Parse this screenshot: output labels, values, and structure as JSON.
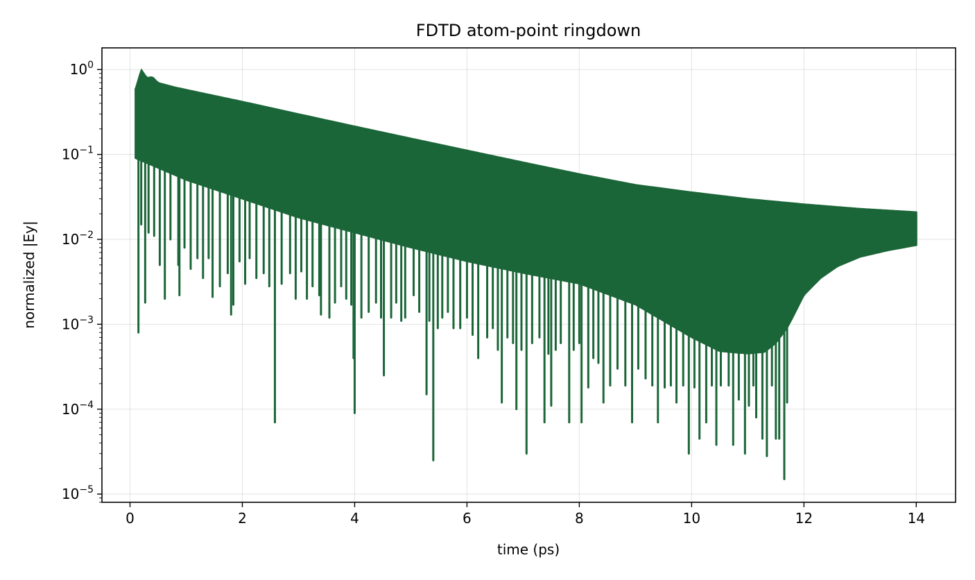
{
  "chart_data": {
    "type": "line",
    "title": "FDTD atom-point ringdown",
    "xlabel": "time (ps)",
    "ylabel": "normalized |Ey|",
    "xlim": [
      -0.5,
      14.7
    ],
    "ylim": [
      8e-06,
      1.8
    ],
    "yscale": "log",
    "grid": true,
    "x_ticks": [
      0,
      2,
      4,
      6,
      8,
      10,
      12,
      14
    ],
    "x_tick_labels": [
      "0",
      "2",
      "4",
      "6",
      "8",
      "10",
      "12",
      "14"
    ],
    "y_ticks": [
      1.0,
      0.1,
      0.01,
      0.001,
      0.0001,
      1e-05
    ],
    "y_tick_labels": [
      {
        "base": "10",
        "exp": "0"
      },
      {
        "base": "10",
        "exp": "−1"
      },
      {
        "base": "10",
        "exp": "−2"
      },
      {
        "base": "10",
        "exp": "−3"
      },
      {
        "base": "10",
        "exp": "−4"
      },
      {
        "base": "10",
        "exp": "−5"
      }
    ],
    "series": [
      {
        "color": "#1b6638",
        "envelope_upper": {
          "x": [
            0.1,
            0.2,
            0.3,
            0.4,
            0.5,
            0.8,
            1.0,
            2.0,
            3.0,
            4.0,
            5.0,
            6.0,
            7.0,
            8.0,
            9.0,
            10.0,
            11.0,
            12.0,
            13.0,
            14.0
          ],
          "y": [
            0.6,
            1.0,
            0.8,
            0.82,
            0.7,
            0.62,
            0.58,
            0.42,
            0.3,
            0.215,
            0.155,
            0.112,
            0.081,
            0.059,
            0.044,
            0.036,
            0.03,
            0.026,
            0.023,
            0.021
          ]
        },
        "envelope_lower": {
          "x": [
            0.1,
            1.0,
            2.0,
            3.0,
            4.0,
            5.0,
            6.0,
            7.0,
            8.0,
            9.0,
            10.0,
            10.5,
            11.0,
            11.3,
            11.5,
            11.7,
            11.8,
            12.0,
            12.3,
            12.6,
            13.0,
            13.5,
            14.0
          ],
          "y": [
            0.09,
            0.05,
            0.03,
            0.018,
            0.012,
            0.008,
            0.0055,
            0.004,
            0.003,
            0.0017,
            0.0007,
            0.00048,
            0.00045,
            0.00047,
            0.0006,
            0.0009,
            0.0012,
            0.0022,
            0.0035,
            0.0048,
            0.0062,
            0.0074,
            0.0085
          ]
        },
        "dips": [
          [
            0.15,
            0.0008
          ],
          [
            0.2,
            0.015
          ],
          [
            0.27,
            0.0018
          ],
          [
            0.33,
            0.012
          ],
          [
            0.43,
            0.011
          ],
          [
            0.53,
            0.005
          ],
          [
            0.62,
            0.002
          ],
          [
            0.72,
            0.01
          ],
          [
            0.86,
            0.005
          ],
          [
            0.88,
            0.0022
          ],
          [
            0.97,
            0.008
          ],
          [
            1.08,
            0.0045
          ],
          [
            1.2,
            0.006
          ],
          [
            1.3,
            0.0035
          ],
          [
            1.4,
            0.006
          ],
          [
            1.47,
            0.0021
          ],
          [
            1.6,
            0.0028
          ],
          [
            1.74,
            0.004
          ],
          [
            1.8,
            0.0013
          ],
          [
            1.84,
            0.0017
          ],
          [
            1.95,
            0.0055
          ],
          [
            2.05,
            0.003
          ],
          [
            2.13,
            0.006
          ],
          [
            2.25,
            0.0035
          ],
          [
            2.38,
            0.004
          ],
          [
            2.48,
            0.0028
          ],
          [
            2.58,
            7e-05
          ],
          [
            2.7,
            0.003
          ],
          [
            2.85,
            0.004
          ],
          [
            2.95,
            0.002
          ],
          [
            3.05,
            0.0042
          ],
          [
            3.15,
            0.002
          ],
          [
            3.25,
            0.0028
          ],
          [
            3.37,
            0.0022
          ],
          [
            3.4,
            0.0013
          ],
          [
            3.55,
            0.0012
          ],
          [
            3.65,
            0.0018
          ],
          [
            3.76,
            0.0028
          ],
          [
            3.85,
            0.002
          ],
          [
            3.94,
            0.0017
          ],
          [
            3.98,
            0.0004
          ],
          [
            4.0,
            9e-05
          ],
          [
            4.12,
            0.0012
          ],
          [
            4.25,
            0.0014
          ],
          [
            4.38,
            0.0018
          ],
          [
            4.47,
            0.0012
          ],
          [
            4.52,
            0.00025
          ],
          [
            4.65,
            0.0012
          ],
          [
            4.74,
            0.0018
          ],
          [
            4.83,
            0.0011
          ],
          [
            4.9,
            0.0012
          ],
          [
            5.05,
            0.0022
          ],
          [
            5.15,
            0.0014
          ],
          [
            5.28,
            0.00015
          ],
          [
            5.33,
            0.0011
          ],
          [
            5.4,
            2.5e-05
          ],
          [
            5.48,
            0.0009
          ],
          [
            5.56,
            0.0012
          ],
          [
            5.66,
            0.0014
          ],
          [
            5.76,
            0.0009
          ],
          [
            5.88,
            0.0009
          ],
          [
            6.0,
            0.0012
          ],
          [
            6.1,
            0.00075
          ],
          [
            6.2,
            0.0004
          ],
          [
            6.36,
            0.0007
          ],
          [
            6.46,
            0.0009
          ],
          [
            6.55,
            0.0005
          ],
          [
            6.62,
            0.00012
          ],
          [
            6.72,
            0.0007
          ],
          [
            6.82,
            0.0006
          ],
          [
            6.88,
            0.0001
          ],
          [
            6.97,
            0.0005
          ],
          [
            7.06,
            3e-05
          ],
          [
            7.16,
            0.0006
          ],
          [
            7.29,
            0.0007
          ],
          [
            7.38,
            7e-05
          ],
          [
            7.45,
            0.00045
          ],
          [
            7.5,
            0.00011
          ],
          [
            7.58,
            0.0005
          ],
          [
            7.67,
            0.0006
          ],
          [
            7.82,
            7e-05
          ],
          [
            7.9,
            0.0005
          ],
          [
            8.0,
            0.0006
          ],
          [
            8.04,
            7e-05
          ],
          [
            8.16,
            0.00018
          ],
          [
            8.25,
            0.0004
          ],
          [
            8.34,
            0.00035
          ],
          [
            8.43,
            0.00012
          ],
          [
            8.55,
            0.00019
          ],
          [
            8.68,
            0.0003
          ],
          [
            8.82,
            0.00019
          ],
          [
            8.94,
            7e-05
          ],
          [
            9.05,
            0.0003
          ],
          [
            9.18,
            0.00023
          ],
          [
            9.3,
            0.00019
          ],
          [
            9.4,
            7e-05
          ],
          [
            9.52,
            0.00018
          ],
          [
            9.63,
            0.00019
          ],
          [
            9.73,
            0.00012
          ],
          [
            9.85,
            0.00019
          ],
          [
            9.95,
            3e-05
          ],
          [
            10.05,
            0.00018
          ],
          [
            10.14,
            4.5e-05
          ],
          [
            10.26,
            7e-05
          ],
          [
            10.36,
            0.00019
          ],
          [
            10.44,
            3.8e-05
          ],
          [
            10.52,
            0.00019
          ],
          [
            10.66,
            0.00019
          ],
          [
            10.74,
            3.8e-05
          ],
          [
            10.84,
            0.00013
          ],
          [
            10.95,
            3e-05
          ],
          [
            11.02,
            0.00011
          ],
          [
            11.1,
            0.00019
          ],
          [
            11.15,
            8e-05
          ],
          [
            11.26,
            4.5e-05
          ],
          [
            11.34,
            2.8e-05
          ],
          [
            11.43,
            0.00019
          ],
          [
            11.5,
            4.5e-05
          ],
          [
            11.56,
            4.5e-05
          ],
          [
            11.65,
            1.5e-05
          ],
          [
            11.7,
            0.00012
          ]
        ]
      }
    ]
  }
}
